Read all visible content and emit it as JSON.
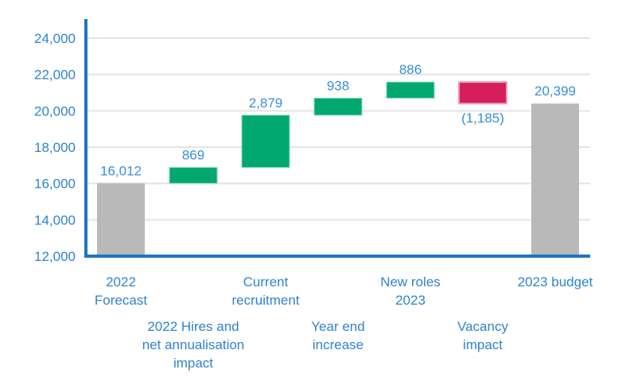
{
  "chart_data": {
    "type": "waterfall",
    "title": "",
    "xlabel": "",
    "ylabel": "",
    "ylim": [
      12000,
      24000
    ],
    "yticks": [
      12000,
      14000,
      16000,
      18000,
      20000,
      22000,
      24000
    ],
    "ytick_labels": [
      "12,000",
      "14,000",
      "16,000",
      "18,000",
      "20,000",
      "22,000",
      "24,000"
    ],
    "grid": true,
    "categories": [
      [
        "2022",
        "Forecast"
      ],
      [
        "2022 Hires and",
        "net annualisation",
        "impact"
      ],
      [
        "Current",
        "recruitment"
      ],
      [
        "Year end",
        "increase"
      ],
      [
        "New roles",
        "2023"
      ],
      [
        "Vacancy",
        "impact"
      ],
      [
        "2023 budget"
      ]
    ],
    "bars": [
      {
        "kind": "total",
        "value": 16012,
        "label": "16,012"
      },
      {
        "kind": "increase",
        "value": 869,
        "label": "869"
      },
      {
        "kind": "increase",
        "value": 2879,
        "label": "2,879"
      },
      {
        "kind": "increase",
        "value": 938,
        "label": "938"
      },
      {
        "kind": "increase",
        "value": 886,
        "label": "886"
      },
      {
        "kind": "decrease",
        "value": -1185,
        "label": "(1,185)"
      },
      {
        "kind": "total",
        "value": 20399,
        "label": "20,399"
      }
    ],
    "colors": {
      "total": "#b9b9b9",
      "increase": "#00a870",
      "decrease": "#d41f5a",
      "axis": "#1b75c4",
      "grid": "#e3e3e3"
    }
  }
}
